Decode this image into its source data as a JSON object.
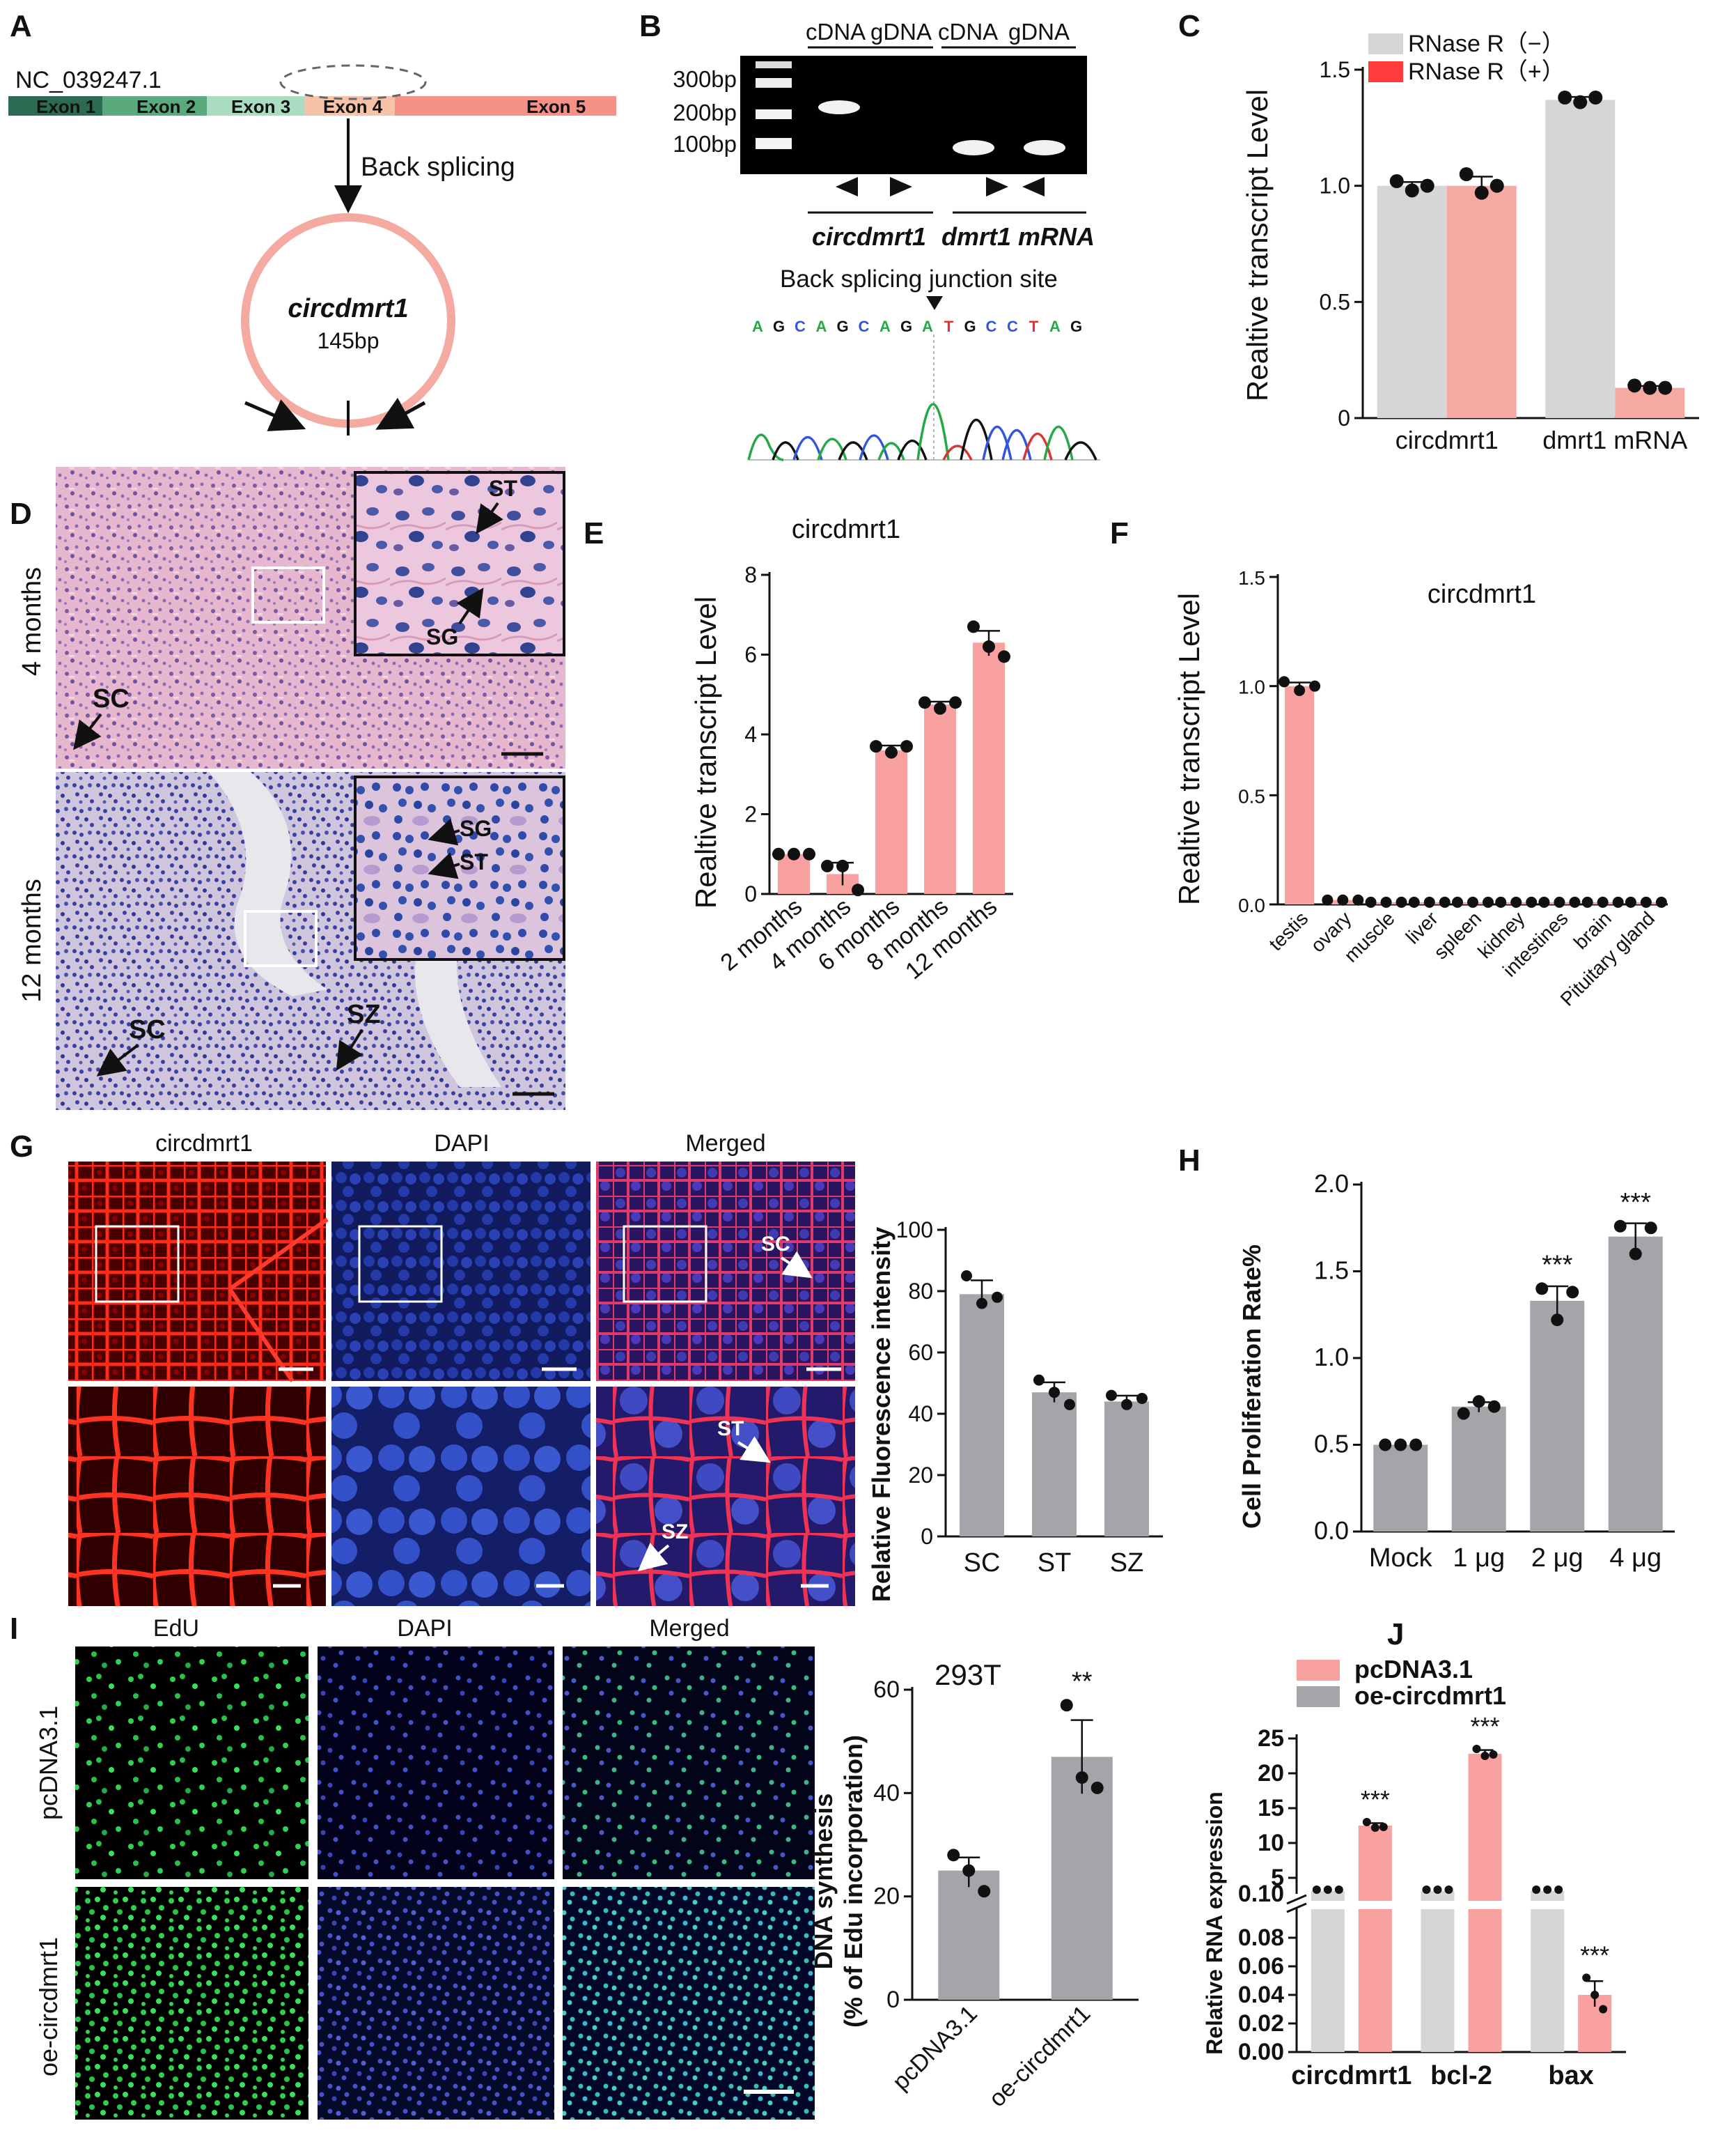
{
  "figure": {
    "colors": {
      "pink": "#f9a0a0",
      "lightgray": "#d6d6d6",
      "gray": "#a3a5a8",
      "red": "#ff3b3b",
      "salmon": "#f4a9a1"
    },
    "panel_A": {
      "label": "A",
      "accession": "NC_039247.1",
      "exons": [
        "Exon 1",
        "Exon 2",
        "Exon 3",
        "Exon 4",
        "Exon 5"
      ],
      "arrow_text": "Back splicing",
      "circ_name": "circdmrt1",
      "circ_size": "145bp"
    },
    "panel_B": {
      "label": "B",
      "lanes": [
        "cDNA",
        "gDNA",
        "cDNA",
        "gDNA"
      ],
      "ladder": [
        "300bp",
        "200bp",
        "100bp"
      ],
      "groups": [
        "circdmrt1",
        "dmrt1 mRNA"
      ],
      "junction_label": "Back splicing junction site",
      "sequence": [
        "A",
        "G",
        "C",
        "A",
        "G",
        "C",
        "A",
        "G",
        "A",
        "T",
        "G",
        "C",
        "C",
        "T",
        "A",
        "G"
      ]
    },
    "panel_C": {
      "label": "C",
      "ylabel": "Realtive transcript Level",
      "legend": [
        "RNase R（−）",
        "RNase R（+）"
      ]
    },
    "panel_D": {
      "label": "D",
      "rows": [
        "4 months",
        "12 months"
      ],
      "annotations_top": [
        "ST",
        "SG",
        "SC"
      ],
      "annotations_bottom": [
        "SG",
        "ST",
        "SC",
        "SZ"
      ]
    },
    "panel_E": {
      "label": "E",
      "title": "circdmrt1",
      "ylabel": "Realtive transcript Level"
    },
    "panel_F": {
      "label": "F",
      "title": "circdmrt1",
      "ylabel": "Realtive transcript Level"
    },
    "panel_G": {
      "label": "G",
      "columns": [
        "circdmrt1",
        "DAPI",
        "Merged"
      ],
      "annotations": [
        "SC",
        "ST",
        "SZ"
      ],
      "ylabel": "Relative Fluorescence intensity"
    },
    "panel_H": {
      "label": "H",
      "ylabel": "Cell Proliferation Rate%"
    },
    "panel_I": {
      "label": "I",
      "columns": [
        "EdU",
        "DAPI",
        "Merged"
      ],
      "rows": [
        "pcDNA3.1",
        "oe-circdmrt1"
      ],
      "chart_title": "293T",
      "ylabel_1": "DNA synthesis",
      "ylabel_2": "(% of Edu incorporation)"
    },
    "panel_J": {
      "label": "J",
      "legend": [
        "pcDNA3.1",
        "oe-circdmrt1"
      ],
      "ylabel": "Relative RNA expression"
    }
  },
  "chart_data": [
    {
      "id": "C",
      "type": "bar",
      "categories": [
        "circdmrt1",
        "dmrt1 mRNA"
      ],
      "series": [
        {
          "name": "RNase R（−）",
          "values": [
            1.0,
            1.37
          ],
          "points": [
            [
              1.02,
              0.98,
              1.0
            ],
            [
              1.38,
              1.36,
              1.38
            ]
          ]
        },
        {
          "name": "RNase R（+）",
          "values": [
            1.0,
            0.13
          ],
          "points": [
            [
              1.05,
              0.97,
              1.0
            ],
            [
              0.14,
              0.13,
              0.13
            ]
          ]
        }
      ],
      "ylabel": "Realtive transcript Level",
      "ylim": [
        0,
        1.5
      ],
      "yticks": [
        "0",
        "0.5",
        "1.0",
        "1.5"
      ]
    },
    {
      "id": "E",
      "type": "bar",
      "title": "circdmrt1",
      "categories": [
        "2 months",
        "4 months",
        "6 months",
        "8 months",
        "12 months"
      ],
      "values": [
        1.0,
        0.5,
        3.6,
        4.75,
        6.3
      ],
      "points": [
        [
          1.0,
          1.0,
          1.0
        ],
        [
          0.7,
          0.7,
          0.1
        ],
        [
          3.7,
          3.55,
          3.7
        ],
        [
          4.8,
          4.65,
          4.8
        ],
        [
          6.7,
          6.2,
          5.95
        ]
      ],
      "ylabel": "Realtive transcript Level",
      "ylim": [
        0,
        8
      ],
      "yticks": [
        "0",
        "2",
        "4",
        "6",
        "8"
      ]
    },
    {
      "id": "F",
      "type": "bar",
      "title": "circdmrt1",
      "categories": [
        "testis",
        "ovary",
        "muscle",
        "liver",
        "spleen",
        "kidney",
        "intestines",
        "brain",
        "Pituitary gland"
      ],
      "values": [
        1.0,
        0.02,
        0.01,
        0.01,
        0.01,
        0.01,
        0.01,
        0.01,
        0.01
      ],
      "points": [
        [
          1.02,
          0.98,
          1.0
        ],
        [
          0.02,
          0.02,
          0.02
        ],
        [
          0.01,
          0.01,
          0.01
        ],
        [
          0.01,
          0.01,
          0.01
        ],
        [
          0.01,
          0.01,
          0.01
        ],
        [
          0.01,
          0.01,
          0.01
        ],
        [
          0.01,
          0.01,
          0.01
        ],
        [
          0.01,
          0.01,
          0.01
        ],
        [
          0.01,
          0.01,
          0.01
        ]
      ],
      "ylabel": "Realtive transcript Level",
      "ylim": [
        0,
        1.5
      ],
      "yticks": [
        "0.0",
        "0.5",
        "1.0",
        "1.5"
      ]
    },
    {
      "id": "G",
      "type": "bar",
      "categories": [
        "SC",
        "ST",
        "SZ"
      ],
      "values": [
        79,
        47,
        44
      ],
      "points": [
        [
          85,
          76,
          78
        ],
        [
          51,
          47,
          43
        ],
        [
          46,
          43,
          45
        ]
      ],
      "ylabel": "Relative Fluorescence intensity",
      "ylim": [
        0,
        100
      ],
      "yticks": [
        "0",
        "20",
        "40",
        "60",
        "80",
        "100"
      ]
    },
    {
      "id": "H",
      "type": "bar",
      "categories": [
        "Mock",
        "1 μg",
        "2 μg",
        "4 μg"
      ],
      "values": [
        0.5,
        0.72,
        1.33,
        1.7
      ],
      "points": [
        [
          0.5,
          0.5,
          0.5
        ],
        [
          0.68,
          0.75,
          0.72
        ],
        [
          1.4,
          1.22,
          1.38
        ],
        [
          1.76,
          1.6,
          1.75
        ]
      ],
      "significance": [
        "",
        "",
        "***",
        "***"
      ],
      "ylabel": "Cell Proliferation Rate%",
      "ylim": [
        0,
        2.0
      ],
      "yticks": [
        "0.0",
        "0.5",
        "1.0",
        "1.5",
        "2.0"
      ]
    },
    {
      "id": "I",
      "type": "bar",
      "title": "293T",
      "categories": [
        "pcDNA3.1",
        "oe-circdmrt1"
      ],
      "values": [
        25,
        47
      ],
      "points": [
        [
          28,
          25,
          21
        ],
        [
          57,
          43,
          41
        ]
      ],
      "significance": [
        "",
        "**"
      ],
      "ylabel": "DNA synthesis (% of Edu incorporation)",
      "ylim": [
        0,
        60
      ],
      "yticks": [
        "0",
        "20",
        "40",
        "60"
      ]
    },
    {
      "id": "J",
      "type": "bar",
      "categories": [
        "circdmrt1",
        "bcl-2",
        "bax"
      ],
      "series": [
        {
          "name": "pcDNA3.1",
          "values": [
            12.5,
            22.8,
            0.04
          ],
          "points": [
            [
              13.0,
              12.2,
              12.3
            ],
            [
              23.5,
              22.5,
              22.7
            ],
            [
              0.052,
              0.04,
              0.03
            ]
          ]
        },
        {
          "name": "oe-circdmrt1",
          "values": [
            1.0,
            1.0,
            1.0
          ]
        }
      ],
      "significance": [
        "***",
        "***",
        "***"
      ],
      "ylabel": "Relative RNA expression",
      "axis_break": "0.10",
      "yticks_upper": [
        "5",
        "10",
        "15",
        "20",
        "25"
      ],
      "yticks_lower": [
        "0.00",
        "0.02",
        "0.04",
        "0.06",
        "0.08",
        "0.10"
      ]
    }
  ]
}
